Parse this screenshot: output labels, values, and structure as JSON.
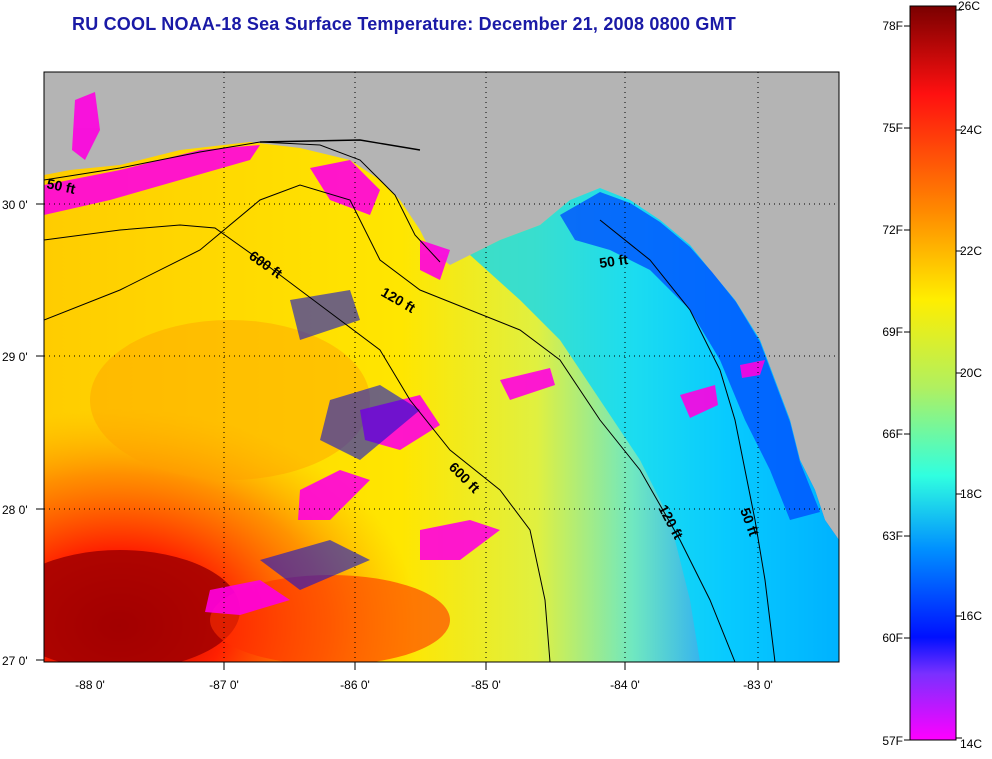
{
  "title": "RU COOL  NOAA-18  Sea Surface Temperature:  December 21, 2008 0800 GMT",
  "map": {
    "lon_range": [
      -88.3,
      -82.5
    ],
    "lat_range": [
      26.95,
      30.85
    ],
    "lon_ticks": [
      "-88 0'",
      "-87 0'",
      "-86 0'",
      "-85 0'",
      "-84 0'",
      "-83 0'"
    ],
    "lat_ticks": [
      "30 0'",
      "29 0'",
      "28 0'",
      "27 0'"
    ],
    "grid": "dotted",
    "land_color": "#b4b4b4",
    "contours": [
      {
        "label": "50 ft"
      },
      {
        "label": "600 ft"
      },
      {
        "label": "120 ft"
      },
      {
        "label": "50 ft"
      },
      {
        "label": "600 ft"
      },
      {
        "label": "120 ft"
      },
      {
        "label": "50 ft"
      }
    ]
  },
  "colorbar": {
    "celsius_labels": [
      "26C",
      "24C",
      "22C",
      "20C",
      "18C",
      "16C",
      "14C"
    ],
    "fahrenheit_labels": [
      "78F",
      "75F",
      "72F",
      "69F",
      "66F",
      "63F",
      "60F",
      "57F"
    ],
    "colors": [
      "#7a0000",
      "#ff0000",
      "#ff8c00",
      "#ffff00",
      "#a0f060",
      "#00ffff",
      "#0090ff",
      "#0000ff",
      "#9040ff",
      "#ff00ff"
    ]
  }
}
